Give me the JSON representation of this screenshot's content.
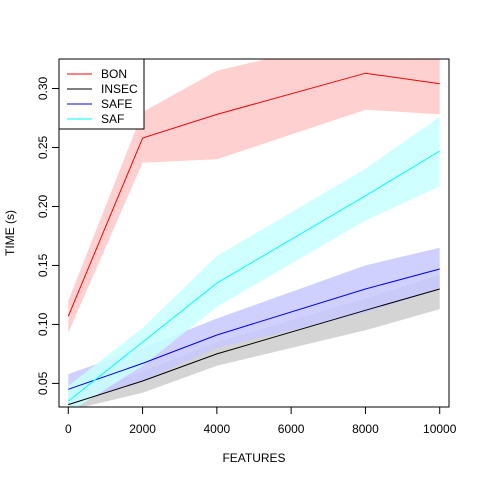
{
  "chart_data": {
    "type": "line",
    "title": "",
    "xlabel": "FEATURES",
    "ylabel": "TIME (s)",
    "xlim": [
      -250,
      10250
    ],
    "ylim": [
      0.03,
      0.325
    ],
    "x_ticks": [
      0,
      2000,
      4000,
      6000,
      8000,
      10000
    ],
    "x_tick_labels": [
      "0",
      "2000",
      "4000",
      "6000",
      "8000",
      "10000"
    ],
    "y_ticks": [
      0.05,
      0.1,
      0.15,
      0.2,
      0.25,
      0.3
    ],
    "y_tick_labels": [
      "0.05",
      "0.10",
      "0.15",
      "0.20",
      "0.25",
      "0.30"
    ],
    "grid": false,
    "legend_position": "top-left",
    "x": [
      0,
      2000,
      4000,
      8000,
      10000
    ],
    "series": [
      {
        "name": "BON",
        "color": "#ff0000",
        "band_color": "#ffc8c8",
        "values": [
          0.107,
          0.258,
          0.278,
          0.313,
          0.304
        ],
        "lower": [
          0.093,
          0.237,
          0.24,
          0.282,
          0.278
        ],
        "upper": [
          0.12,
          0.28,
          0.315,
          0.345,
          0.34
        ]
      },
      {
        "name": "INSEC",
        "color": "#000000",
        "band_color": "#cccccc",
        "values": [
          0.032,
          0.052,
          0.075,
          0.112,
          0.13
        ],
        "lower": [
          0.027,
          0.042,
          0.065,
          0.095,
          0.113
        ],
        "upper": [
          0.037,
          0.06,
          0.085,
          0.122,
          0.142
        ]
      },
      {
        "name": "SAFE",
        "color": "#0000ff",
        "band_color": "#c8c8ff",
        "values": [
          0.045,
          0.067,
          0.091,
          0.13,
          0.147
        ],
        "lower": [
          0.031,
          0.052,
          0.08,
          0.11,
          0.13
        ],
        "upper": [
          0.058,
          0.08,
          0.105,
          0.15,
          0.165
        ]
      },
      {
        "name": "SAF",
        "color": "#00ffff",
        "band_color": "#c8ffff",
        "values": [
          0.035,
          0.085,
          0.135,
          0.209,
          0.247
        ],
        "lower": [
          0.025,
          0.065,
          0.115,
          0.188,
          0.217
        ],
        "upper": [
          0.048,
          0.097,
          0.158,
          0.232,
          0.276
        ]
      }
    ]
  }
}
